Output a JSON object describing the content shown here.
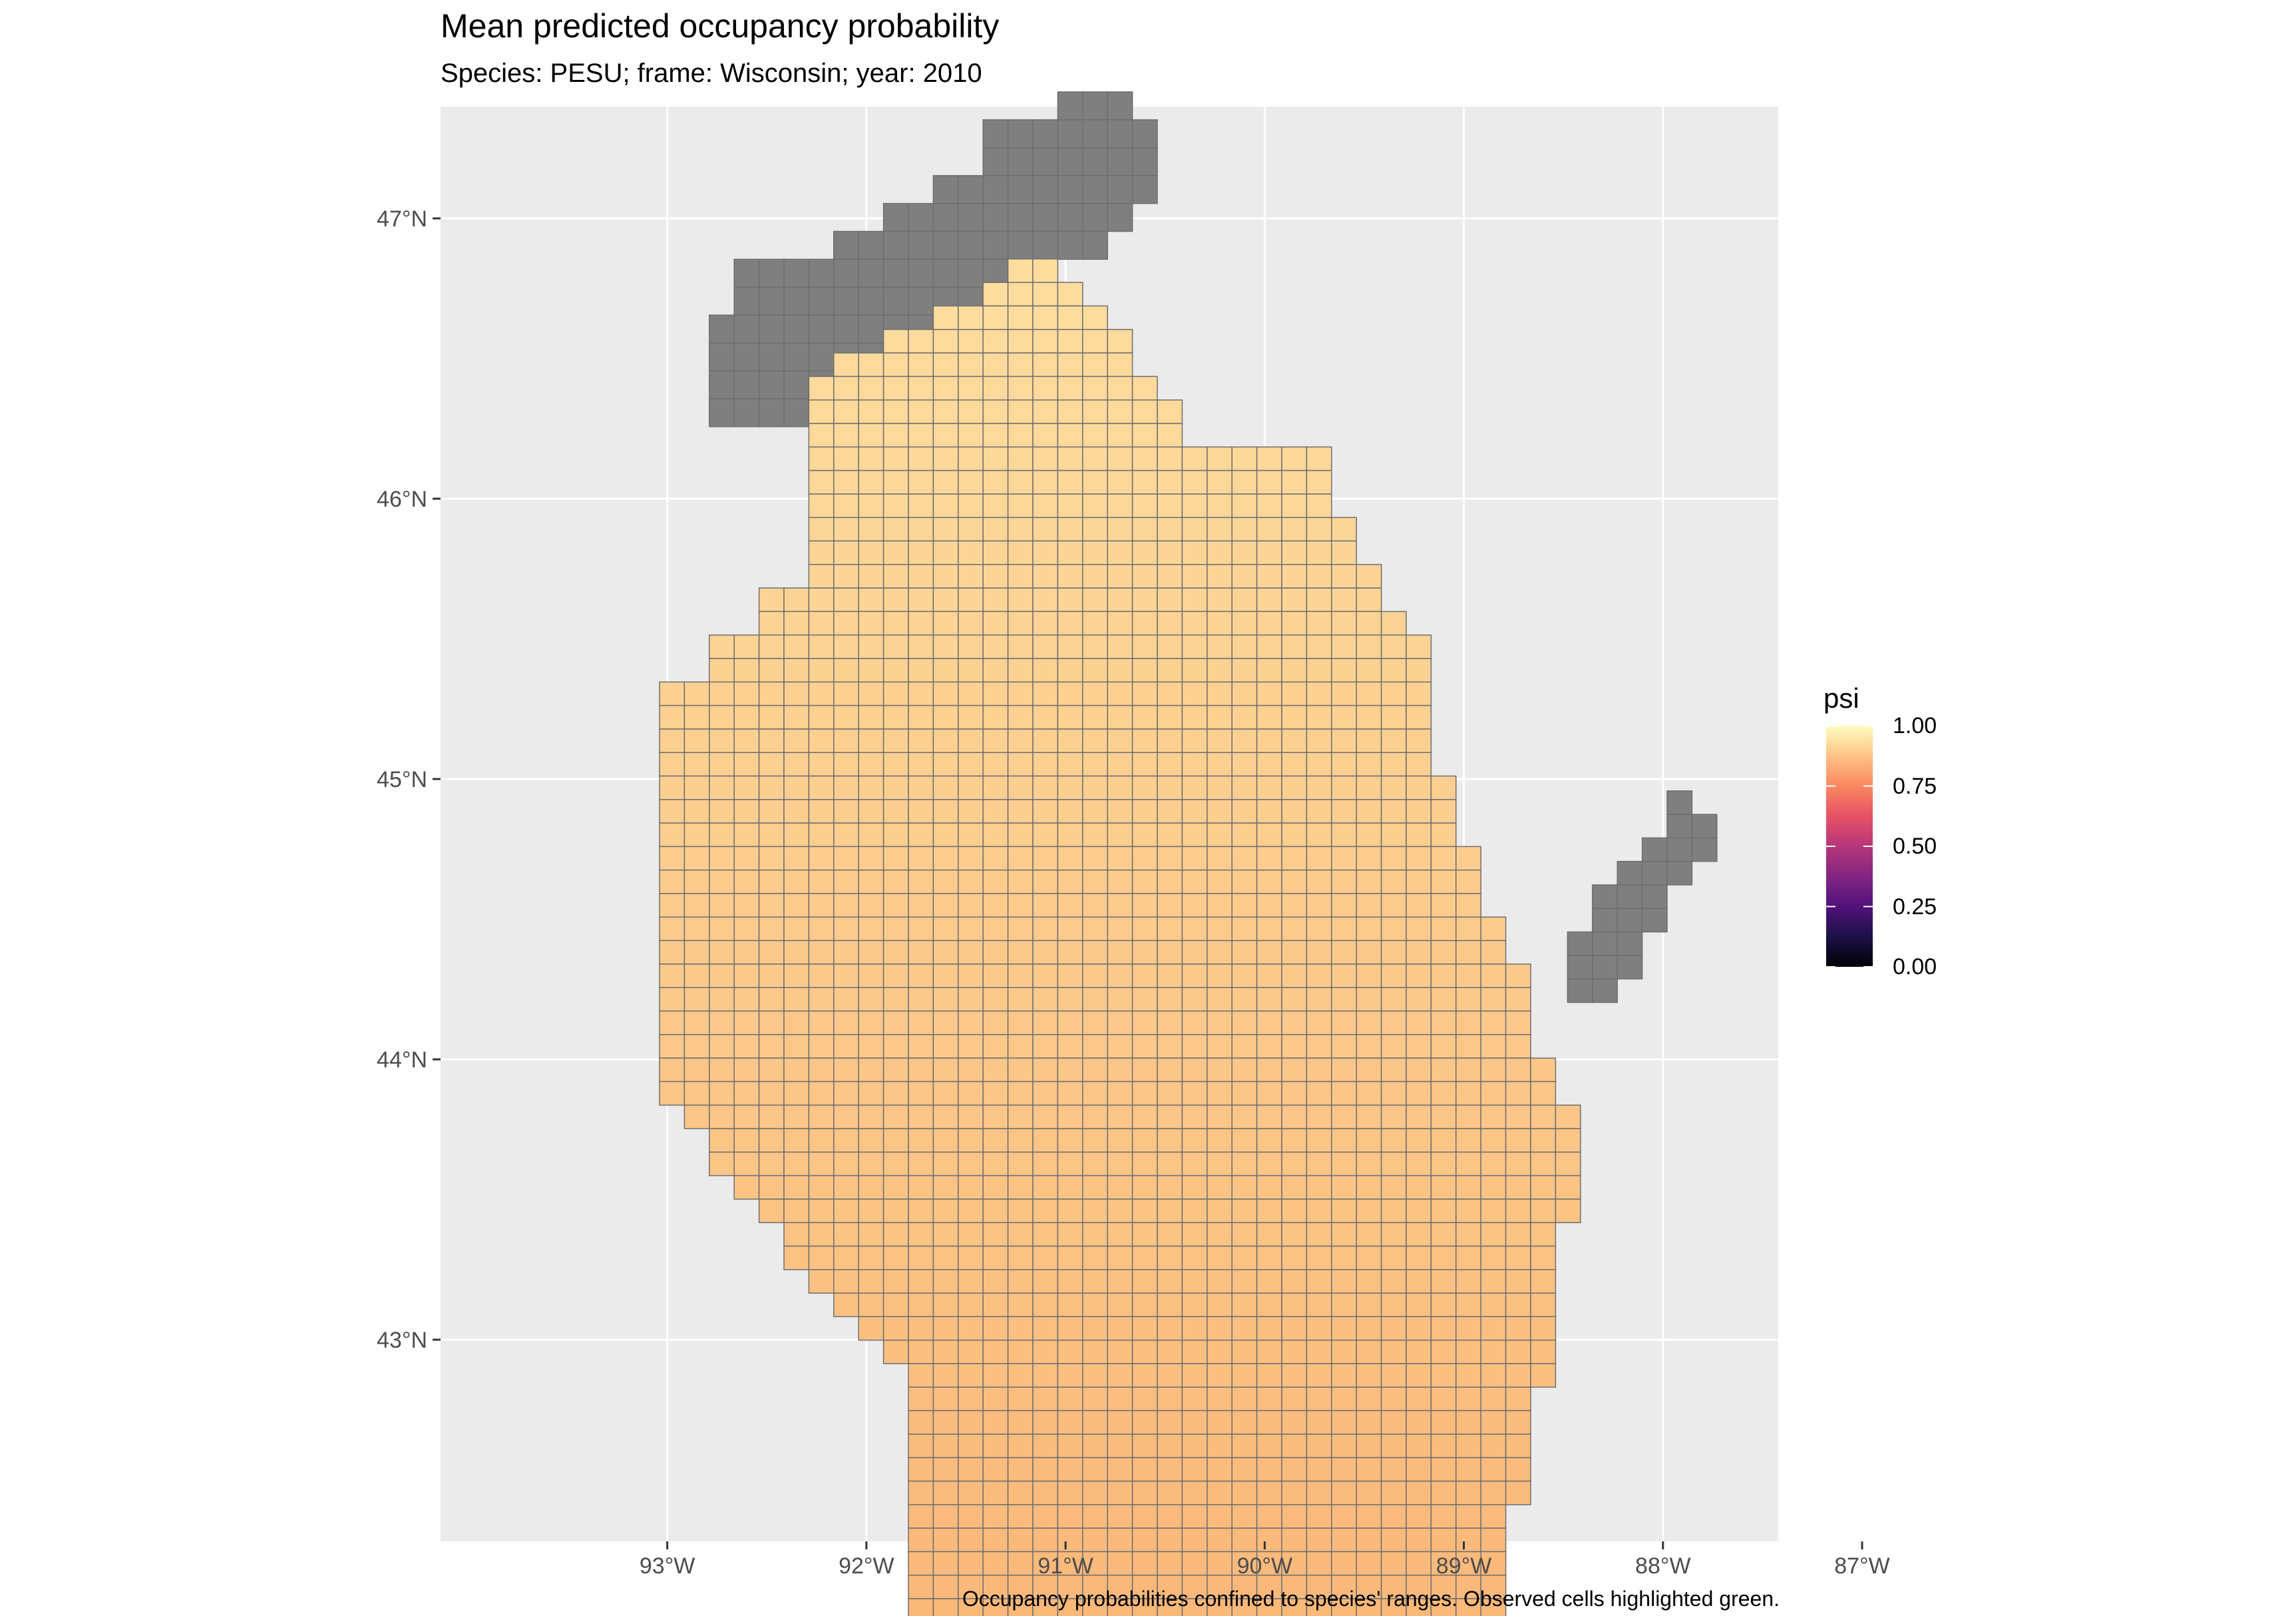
{
  "title": "Mean predicted occupancy probability",
  "subtitle": "Species: PESU; frame: Wisconsin; year: 2010",
  "caption": "Occupancy probabilities confined to species' ranges. Observed cells highlighted green.",
  "axes": {
    "x_ticks": [
      "93°W",
      "92°W",
      "91°W",
      "90°W",
      "89°W",
      "88°W",
      "87°W"
    ],
    "x_tick_values": [
      -93,
      -92,
      -91,
      -90,
      -89,
      -88,
      -87
    ],
    "y_ticks": [
      "43°N",
      "44°N",
      "45°N",
      "46°N",
      "47°N"
    ],
    "y_tick_values": [
      43,
      44,
      45,
      46,
      47
    ],
    "lon_range": [
      -93.1,
      -86.4
    ],
    "lat_range": [
      42.3,
      47.35
    ]
  },
  "legend": {
    "title": "psi",
    "labels": [
      "1.00",
      "0.75",
      "0.50",
      "0.25",
      "0.00"
    ],
    "colormap": "magma",
    "range": [
      0,
      1
    ]
  },
  "colors": {
    "panel_background": "#ebebeb",
    "gridline": "#ffffff",
    "out_of_range_cell": "#7f7f7f",
    "cell_border": "#6e6e6e",
    "observed_highlight": "#7ecf5a"
  },
  "chart_data": {
    "type": "heatmap",
    "title": "Mean predicted occupancy probability",
    "subtitle": "Species: PESU; frame: Wisconsin; year: 2010",
    "variable": "psi",
    "value_range": [
      0,
      1
    ],
    "region": "Wisconsin",
    "cell_values_description": "Grid of cells over Wisconsin; predicted psi mostly between 0.80 and 1.00; higher values (near 1.00) in the north and along the eastern edge; slightly lower values (about 0.80) in the southeast and south-central. Grey cells are outside the species' range (Lake Superior shoreline and Door Peninsula)."
  }
}
